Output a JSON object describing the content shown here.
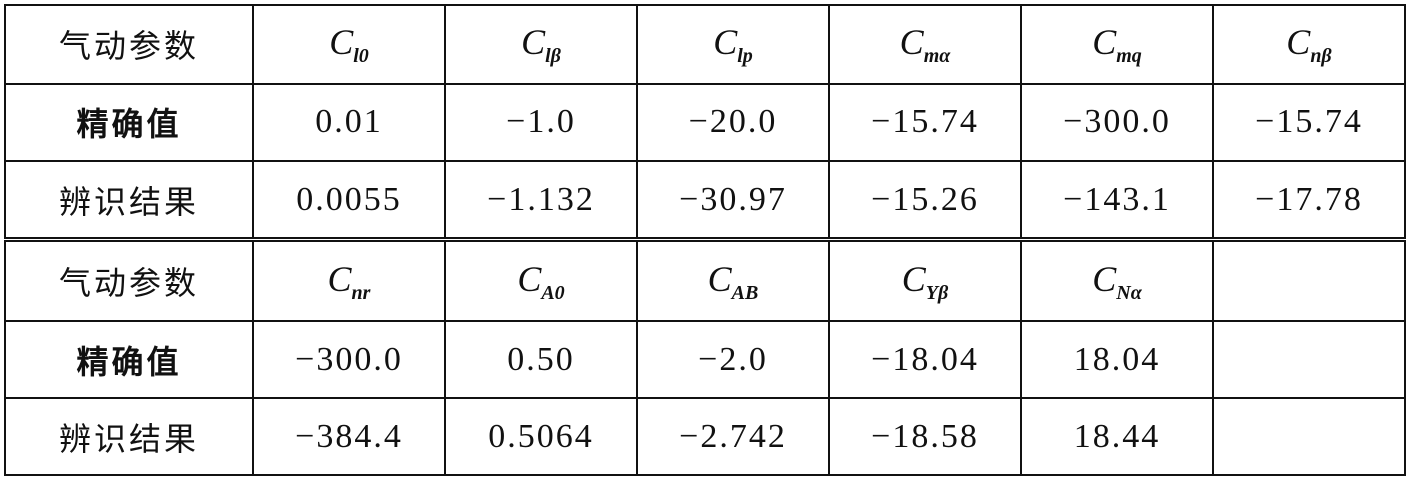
{
  "tables": [
    {
      "param_label": "气动参数",
      "params": [
        {
          "sym": "C",
          "sub": "l0"
        },
        {
          "sym": "C",
          "sub": "lβ"
        },
        {
          "sym": "C",
          "sub": "lp"
        },
        {
          "sym": "C",
          "sub": "mα"
        },
        {
          "sym": "C",
          "sub": "mq"
        },
        {
          "sym": "C",
          "sub": "nβ"
        }
      ],
      "exact_label": "精确值",
      "exact": [
        "0.01",
        "−1.0",
        "−20.0",
        "−15.74",
        "−300.0",
        "−15.74"
      ],
      "ident_label": "辨识结果",
      "ident": [
        "0.0055",
        "−1.132",
        "−30.97",
        "−15.26",
        "−143.1",
        "−17.78"
      ]
    },
    {
      "param_label": "气动参数",
      "params": [
        {
          "sym": "C",
          "sub": "nr"
        },
        {
          "sym": "C",
          "sub": "A0"
        },
        {
          "sym": "C",
          "sub": "AB"
        },
        {
          "sym": "C",
          "sub": "Yβ"
        },
        {
          "sym": "C",
          "sub": "Nα"
        },
        {
          "sym": "",
          "sub": ""
        }
      ],
      "exact_label": "精确值",
      "exact": [
        "−300.0",
        "0.50",
        "−2.0",
        "−18.04",
        "18.04",
        ""
      ],
      "ident_label": "辨识结果",
      "ident": [
        "−384.4",
        "0.5064",
        "−2.742",
        "−18.58",
        "18.44",
        ""
      ]
    }
  ]
}
